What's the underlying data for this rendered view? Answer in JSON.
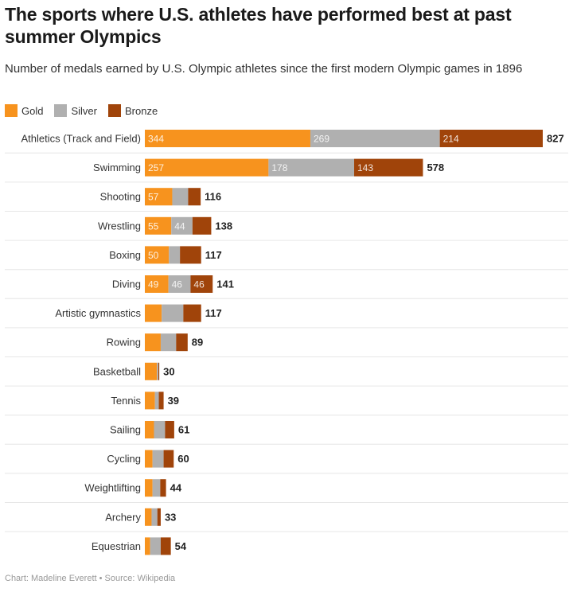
{
  "title": "The sports where U.S. athletes have performed best at past summer Olympics",
  "subtitle": "Number of medals earned by U.S. Olympic athletes since the first modern Olympic games in 1896",
  "source": "Chart: Madeline Everett • Source: Wikipedia",
  "colors": {
    "gold": "#f7931e",
    "silver": "#b0b0b0",
    "bronze": "#a0440a"
  },
  "chart_data": {
    "type": "bar",
    "orientation": "horizontal",
    "stacked": true,
    "legend_position": "top-left",
    "grid": false,
    "categories": [
      "Athletics (Track and Field)",
      "Swimming",
      "Shooting",
      "Wrestling",
      "Boxing",
      "Diving",
      "Artistic gymnastics",
      "Rowing",
      "Basketball",
      "Tennis",
      "Sailing",
      "Cycling",
      "Weightlifting",
      "Archery",
      "Equestrian"
    ],
    "series": [
      {
        "name": "Gold",
        "values": [
          344,
          257,
          57,
          55,
          50,
          49,
          35,
          33,
          25,
          21,
          19,
          16,
          16,
          14,
          11
        ]
      },
      {
        "name": "Silver",
        "values": [
          269,
          178,
          33,
          44,
          23,
          46,
          45,
          32,
          3,
          8,
          23,
          23,
          16,
          12,
          22
        ]
      },
      {
        "name": "Bronze",
        "values": [
          214,
          143,
          26,
          39,
          44,
          46,
          37,
          24,
          2,
          10,
          19,
          21,
          12,
          7,
          21
        ]
      }
    ],
    "totals": [
      827,
      578,
      116,
      138,
      117,
      141,
      117,
      89,
      30,
      39,
      61,
      60,
      44,
      33,
      54
    ],
    "data_labels": [
      [
        "344",
        "269",
        "214"
      ],
      [
        "257",
        "178",
        "143"
      ],
      [
        "57",
        "",
        ""
      ],
      [
        "55",
        "44",
        ""
      ],
      [
        "50",
        "",
        ""
      ],
      [
        "49",
        "46",
        "46"
      ],
      [
        "",
        "",
        ""
      ],
      [
        "",
        "",
        ""
      ],
      [
        "",
        "",
        ""
      ],
      [
        "",
        "",
        ""
      ],
      [
        "",
        "",
        ""
      ],
      [
        "",
        "",
        ""
      ],
      [
        "",
        "",
        ""
      ],
      [
        "",
        "",
        ""
      ],
      [
        "",
        "",
        ""
      ]
    ]
  }
}
